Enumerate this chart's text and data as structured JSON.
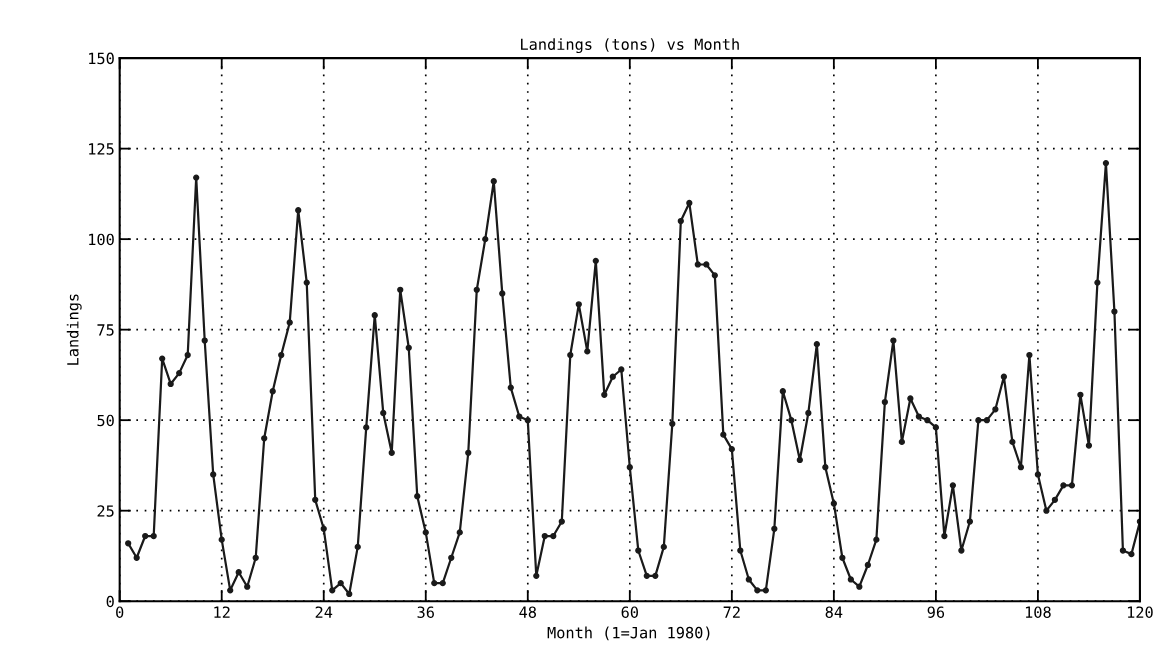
{
  "chart_data": {
    "type": "line",
    "title": "Landings (tons) vs Month",
    "xlabel": "Month (1=Jan 1980)",
    "ylabel": "Landings",
    "x": [
      1,
      2,
      3,
      4,
      5,
      6,
      7,
      8,
      9,
      10,
      11,
      12,
      13,
      14,
      15,
      16,
      17,
      18,
      19,
      20,
      21,
      22,
      23,
      24,
      25,
      26,
      27,
      28,
      29,
      30,
      31,
      32,
      33,
      34,
      35,
      36,
      37,
      38,
      39,
      40,
      41,
      42,
      43,
      44,
      45,
      46,
      47,
      48,
      49,
      50,
      51,
      52,
      53,
      54,
      55,
      56,
      57,
      58,
      59,
      60,
      61,
      62,
      63,
      64,
      65,
      66,
      67,
      68,
      69,
      70,
      71,
      72,
      73,
      74,
      75,
      76,
      77,
      78,
      79,
      80,
      81,
      82,
      83,
      84,
      85,
      86,
      87,
      88,
      89,
      90,
      91,
      92,
      93,
      94,
      95,
      96,
      97,
      98,
      99,
      100,
      101,
      102,
      103,
      104,
      105,
      106,
      107,
      108,
      109,
      110,
      111,
      112,
      113,
      114,
      115,
      116,
      117,
      118,
      119,
      120
    ],
    "series": [
      {
        "color": "#1a1a1a",
        "values": [
          16,
          12,
          18,
          18,
          67,
          60,
          63,
          68,
          117,
          72,
          35,
          17,
          3,
          8,
          4,
          12,
          45,
          58,
          68,
          77,
          108,
          88,
          28,
          20,
          3,
          5,
          2,
          15,
          48,
          79,
          52,
          41,
          86,
          70,
          29,
          19,
          5,
          5,
          12,
          19,
          41,
          86,
          100,
          116,
          85,
          59,
          51,
          50,
          7,
          18,
          18,
          22,
          68,
          82,
          69,
          94,
          57,
          62,
          64,
          37,
          14,
          7,
          7,
          15,
          49,
          105,
          110,
          93,
          93,
          90,
          46,
          42,
          14,
          6,
          3,
          3,
          20,
          58,
          50,
          39,
          52,
          71,
          37,
          27,
          12,
          6,
          4,
          10,
          17,
          55,
          72,
          44,
          56,
          51,
          50,
          48,
          18,
          32,
          14,
          22,
          50,
          50,
          53,
          62,
          44,
          37,
          68,
          35,
          25,
          28,
          32,
          32,
          57,
          43,
          88,
          121,
          80,
          14,
          13,
          22
        ]
      }
    ],
    "xlim": [
      0,
      120
    ],
    "xticks": [
      0,
      12,
      24,
      36,
      48,
      60,
      72,
      84,
      96,
      108,
      120
    ],
    "ylim": [
      0,
      150
    ],
    "yticks": [
      0,
      25,
      50,
      75,
      100,
      125,
      150
    ],
    "grid": true,
    "marker": "circle",
    "line_style": "solid",
    "legend": false
  }
}
